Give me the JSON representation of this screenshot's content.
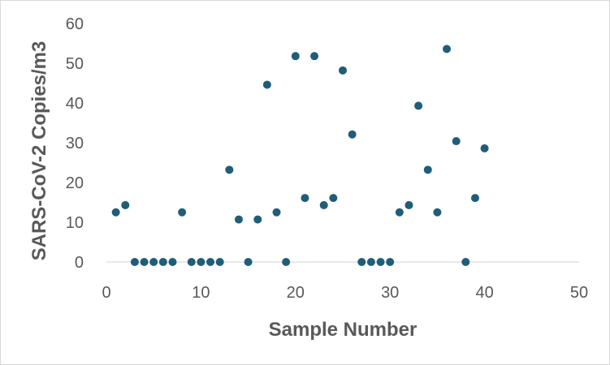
{
  "chart_data": {
    "type": "scatter",
    "title": "",
    "xlabel": "Sample Number",
    "ylabel": "SARS-CoV-2 Copies/m3",
    "xlim": [
      0,
      50
    ],
    "ylim": [
      0,
      60
    ],
    "xticks": [
      "0",
      "10",
      "20",
      "30",
      "40",
      "50"
    ],
    "yticks": [
      "0",
      "10",
      "20",
      "30",
      "40",
      "50",
      "60"
    ],
    "grid": "none",
    "legend": "none",
    "marker_color": "#1f5d7a",
    "series": [
      {
        "x": [
          1,
          2,
          3,
          4,
          5,
          6,
          7,
          8,
          9,
          10,
          11,
          12,
          13,
          14,
          15,
          16,
          17,
          18,
          19,
          20,
          21,
          22,
          23,
          24,
          25,
          26,
          27,
          28,
          29,
          30,
          31,
          32,
          33,
          34,
          35,
          36,
          37,
          38,
          39,
          40
        ],
        "y": [
          12.5,
          14.3,
          0,
          0,
          0,
          0,
          0,
          12.5,
          0,
          0,
          0,
          0,
          23.2,
          10.7,
          0,
          10.7,
          44.6,
          12.5,
          0,
          51.8,
          16.1,
          51.8,
          14.3,
          16.1,
          48.2,
          32.1,
          0,
          0,
          0,
          0,
          12.5,
          14.3,
          39.3,
          23.2,
          12.5,
          53.6,
          30.4,
          0,
          16.1,
          28.6
        ]
      }
    ]
  }
}
